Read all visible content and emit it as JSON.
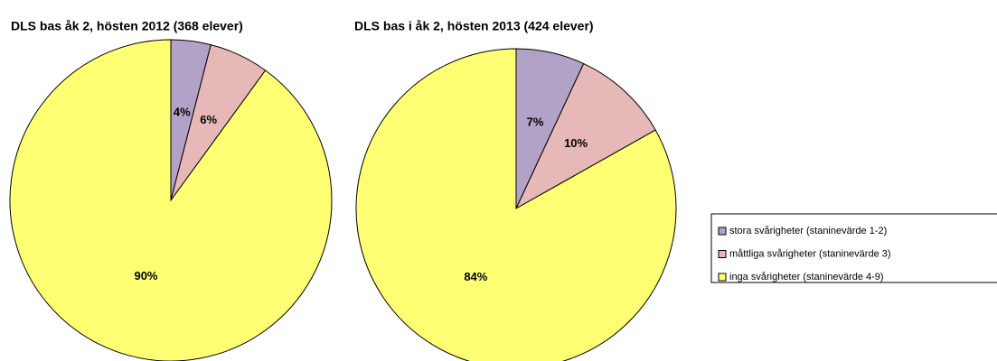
{
  "chart_data": [
    {
      "type": "pie",
      "title": "DLS bas åk 2, hösten 2012 (368 elever)",
      "categories": [
        "stora svårigheter (staninevärde 1-2)",
        "måttliga svårigheter (staninevärde 3)",
        "inga svårigheter (staninevärde 4-9)"
      ],
      "values": [
        4,
        6,
        90
      ],
      "value_labels": [
        "4%",
        "6%",
        "90%"
      ],
      "colors": [
        "#b3a2c7",
        "#e6b9b8",
        "#ffff73"
      ]
    },
    {
      "type": "pie",
      "title": "DLS bas i åk 2, hösten 2013 (424 elever)",
      "categories": [
        "stora svårigheter (staninevärde 1-2)",
        "måttliga svårigheter (staninevärde 3)",
        "inga svårigheter (staninevärde 4-9)"
      ],
      "values": [
        7,
        10,
        84
      ],
      "value_labels": [
        "7%",
        "10%",
        "84%"
      ],
      "colors": [
        "#b3a2c7",
        "#e6b9b8",
        "#ffff73"
      ]
    }
  ]
}
